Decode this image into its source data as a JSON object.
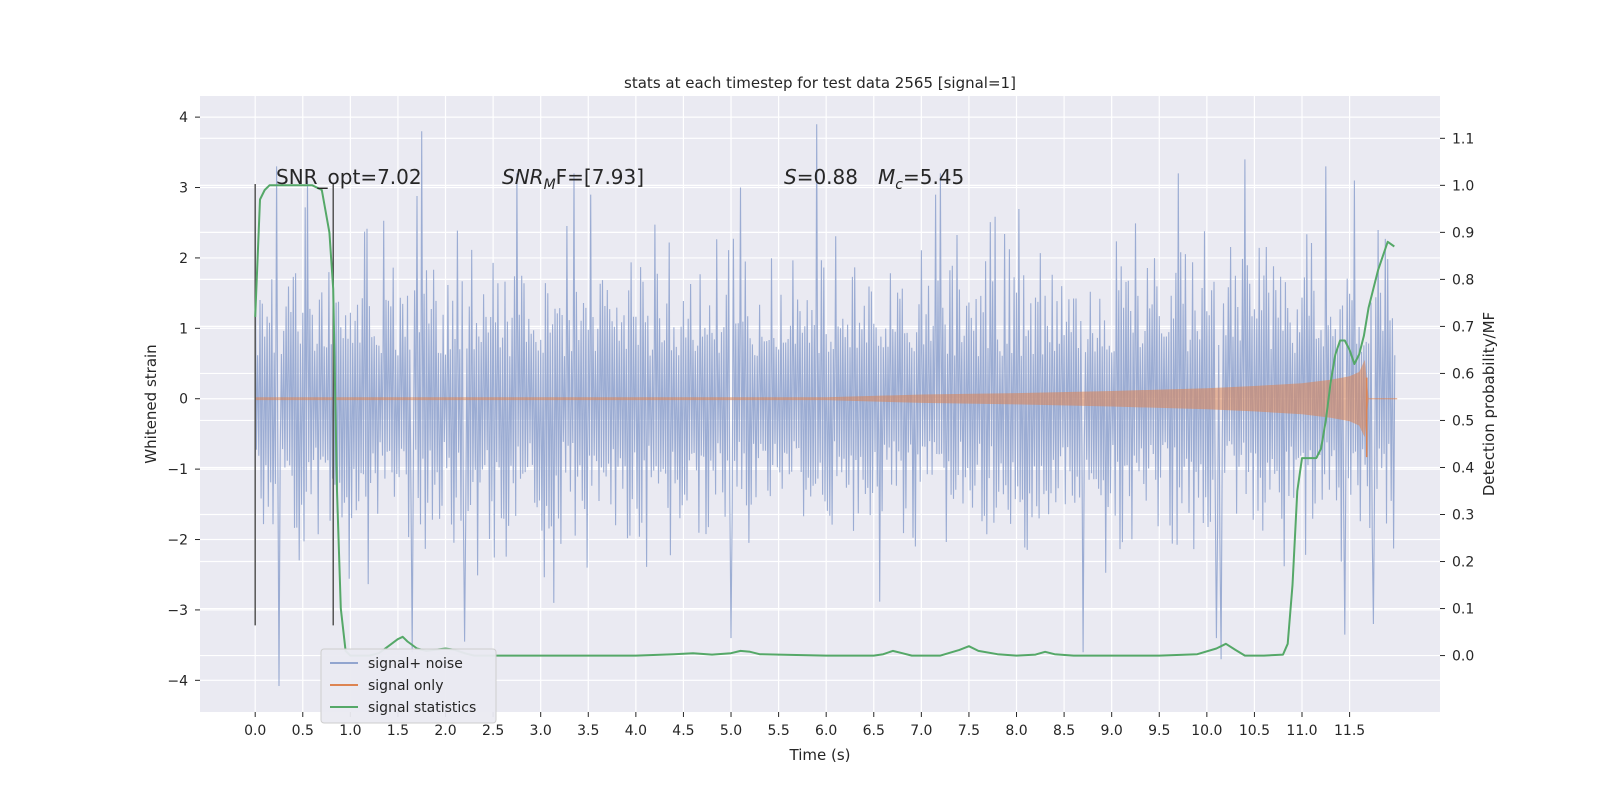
{
  "chart_data": {
    "type": "line",
    "title": "stats at each timestep for test data 2565 [signal=1]",
    "xlabel": "Time (s)",
    "ylabel_left": "Whitened strain",
    "ylabel_right": "Detection probability/MF",
    "x_range": [
      -0.58,
      12.45
    ],
    "y_left_range": [
      -4.45,
      4.3
    ],
    "y_right_range": [
      -0.12,
      1.19
    ],
    "x_ticks": [
      "0.0",
      "0.5",
      "1.0",
      "1.5",
      "2.0",
      "2.5",
      "3.0",
      "3.5",
      "4.0",
      "4.5",
      "5.0",
      "5.5",
      "6.0",
      "6.5",
      "7.0",
      "7.5",
      "8.0",
      "8.5",
      "9.0",
      "9.5",
      "10.0",
      "10.5",
      "11.0",
      "11.5"
    ],
    "y_left_ticks": [
      "4",
      "3",
      "2",
      "1",
      "0",
      "−1",
      "−2",
      "−3",
      "−4"
    ],
    "y_right_ticks": [
      "1.1",
      "1.0",
      "0.9",
      "0.8",
      "0.7",
      "0.6",
      "0.5",
      "0.4",
      "0.3",
      "0.2",
      "0.1",
      "0.0"
    ],
    "grid": true,
    "legend_position": "lower-left",
    "annotations": {
      "snr_opt": "SNR_opt=7.02",
      "snr_mf_sym": "SNR",
      "snr_mf_sub": "M",
      "snr_mf_rest": "F=[7.93]",
      "s_sym": "S",
      "s_rest": "=0.88",
      "mc_sym": "M",
      "mc_sub": "c",
      "mc_rest": "=5.45"
    },
    "vertical_markers": [
      0.0,
      0.82
    ],
    "series": [
      {
        "name": "signal+ noise",
        "color": "#92a5cf",
        "axis": "left",
        "x_start": 0.0,
        "x_end": 11.98,
        "typical_amplitude": 1.8,
        "peaks": [
          [
            0.22,
            3.3
          ],
          [
            0.55,
            3.1
          ],
          [
            1.75,
            3.8
          ],
          [
            2.75,
            3.2
          ],
          [
            3.35,
            3.2
          ],
          [
            5.1,
            3.0
          ],
          [
            5.9,
            3.9
          ],
          [
            7.2,
            3.2
          ],
          [
            9.7,
            3.2
          ],
          [
            10.4,
            3.4
          ],
          [
            11.25,
            3.3
          ],
          [
            11.55,
            3.1
          ]
        ],
        "troughs": [
          [
            0.25,
            -4.08
          ],
          [
            1.65,
            -3.6
          ],
          [
            2.2,
            -3.45
          ],
          [
            5.0,
            -3.4
          ],
          [
            8.7,
            -3.6
          ],
          [
            10.1,
            -3.4
          ],
          [
            10.15,
            -3.7
          ],
          [
            11.45,
            -3.35
          ],
          [
            11.75,
            -3.2
          ]
        ]
      },
      {
        "name": "signal only",
        "color": "#dd8452",
        "axis": "left",
        "envelope": [
          [
            0.0,
            0.02
          ],
          [
            6.0,
            0.02
          ],
          [
            7.0,
            0.06
          ],
          [
            8.0,
            0.08
          ],
          [
            9.0,
            0.11
          ],
          [
            10.0,
            0.15
          ],
          [
            10.5,
            0.18
          ],
          [
            11.0,
            0.22
          ],
          [
            11.3,
            0.27
          ],
          [
            11.5,
            0.32
          ],
          [
            11.6,
            0.38
          ],
          [
            11.66,
            0.55
          ],
          [
            11.7,
            0.01
          ],
          [
            12.0,
            0.01
          ]
        ],
        "tail_min": [
          11.68,
          -0.83
        ]
      },
      {
        "name": "signal statistics",
        "color": "#55a868",
        "axis": "right",
        "x": [
          0.0,
          0.05,
          0.1,
          0.15,
          0.2,
          0.3,
          0.4,
          0.5,
          0.6,
          0.7,
          0.78,
          0.82,
          0.86,
          0.9,
          0.95,
          1.0,
          1.1,
          1.2,
          1.3,
          1.4,
          1.5,
          1.55,
          1.6,
          1.7,
          1.8,
          2.0,
          2.1,
          2.2,
          2.3,
          2.5,
          3.0,
          4.0,
          4.4,
          4.6,
          4.8,
          5.0,
          5.1,
          5.2,
          5.3,
          5.5,
          6.0,
          6.5,
          6.6,
          6.7,
          6.8,
          6.9,
          7.0,
          7.2,
          7.4,
          7.5,
          7.6,
          7.8,
          8.0,
          8.2,
          8.3,
          8.4,
          8.6,
          9.0,
          9.5,
          9.9,
          10.1,
          10.2,
          10.3,
          10.4,
          10.6,
          10.8,
          10.85,
          10.9,
          10.95,
          11.0,
          11.05,
          11.15,
          11.2,
          11.25,
          11.3,
          11.35,
          11.4,
          11.45,
          11.5,
          11.55,
          11.6,
          11.65,
          11.7,
          11.8,
          11.9,
          11.97
        ],
        "y": [
          0.72,
          0.97,
          0.99,
          1.0,
          1.0,
          1.0,
          1.0,
          1.0,
          1.0,
          0.99,
          0.9,
          0.78,
          0.35,
          0.1,
          0.01,
          0.0,
          0.0,
          0.0,
          0.005,
          0.02,
          0.035,
          0.04,
          0.03,
          0.015,
          0.01,
          0.015,
          0.012,
          0.005,
          0.0,
          0.0,
          0.0,
          0.0,
          0.003,
          0.005,
          0.002,
          0.005,
          0.01,
          0.008,
          0.003,
          0.002,
          0.0,
          0.0,
          0.003,
          0.01,
          0.005,
          0.0,
          0.0,
          0.0,
          0.012,
          0.02,
          0.01,
          0.003,
          0.0,
          0.002,
          0.008,
          0.003,
          0.0,
          0.0,
          0.0,
          0.003,
          0.015,
          0.025,
          0.012,
          0.0,
          0.0,
          0.002,
          0.025,
          0.15,
          0.35,
          0.42,
          0.42,
          0.42,
          0.44,
          0.5,
          0.58,
          0.64,
          0.67,
          0.67,
          0.65,
          0.62,
          0.64,
          0.68,
          0.74,
          0.82,
          0.88,
          0.87
        ]
      }
    ]
  }
}
